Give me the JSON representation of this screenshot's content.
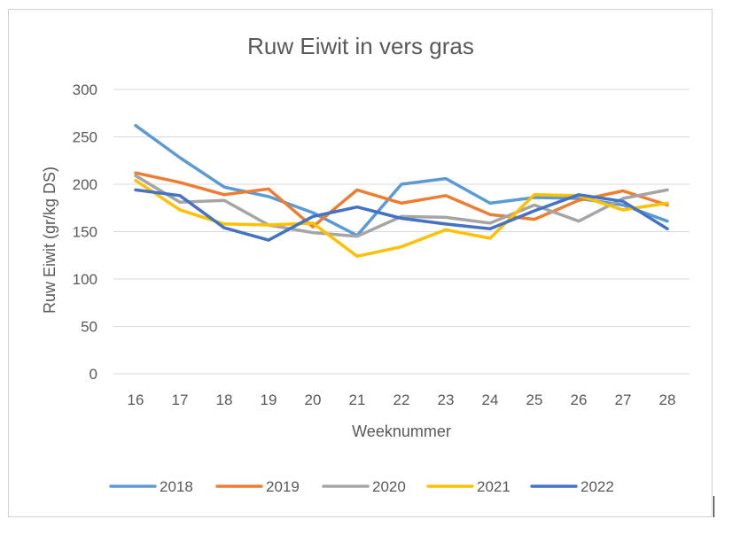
{
  "chart_data": {
    "type": "line",
    "title": "Ruw Eiwit in vers gras",
    "xlabel": "Weeknummer",
    "ylabel": "Ruw Eiwit (gr/kg DS)",
    "ylim": [
      0,
      300
    ],
    "yticks": [
      0,
      50,
      100,
      150,
      200,
      250,
      300
    ],
    "categories": [
      "16",
      "17",
      "18",
      "19",
      "20",
      "21",
      "22",
      "23",
      "24",
      "25",
      "26",
      "27",
      "28"
    ],
    "grid": true,
    "legend_position": "bottom",
    "series": [
      {
        "name": "2018",
        "color": "#5B9BD5",
        "values": [
          262,
          228,
          197,
          187,
          170,
          146,
          200,
          206,
          180,
          186,
          185,
          178,
          161
        ]
      },
      {
        "name": "2019",
        "color": "#ED7D31",
        "values": [
          212,
          202,
          189,
          195,
          155,
          194,
          180,
          188,
          168,
          163,
          183,
          193,
          178
        ]
      },
      {
        "name": "2020",
        "color": "#A5A5A5",
        "values": [
          209,
          181,
          183,
          157,
          149,
          145,
          166,
          165,
          159,
          178,
          161,
          185,
          194
        ]
      },
      {
        "name": "2021",
        "color": "#FFC000",
        "values": [
          204,
          173,
          158,
          157,
          159,
          124,
          134,
          152,
          143,
          189,
          188,
          173,
          180
        ]
      },
      {
        "name": "2022",
        "color": "#4472C4",
        "values": [
          194,
          188,
          154,
          141,
          166,
          176,
          164,
          158,
          153,
          172,
          189,
          182,
          153
        ]
      }
    ]
  }
}
